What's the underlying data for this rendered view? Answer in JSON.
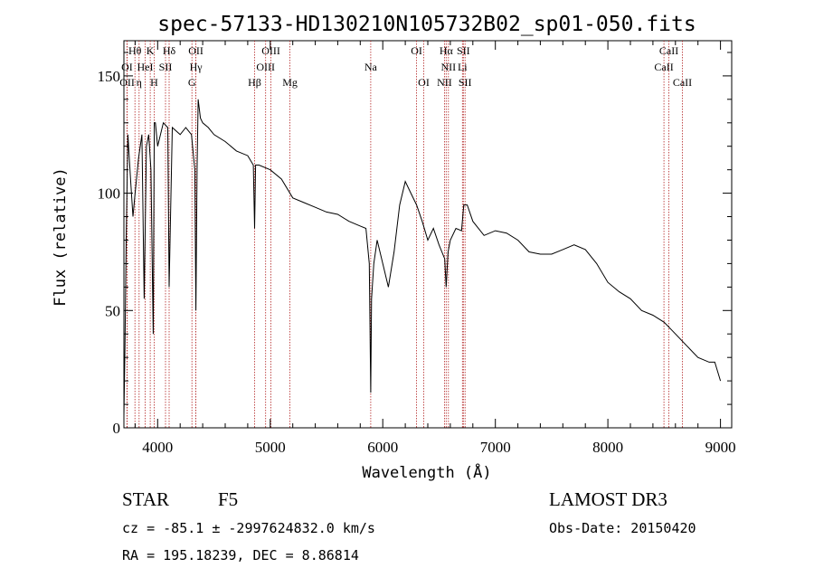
{
  "chart_data": {
    "type": "line",
    "title": "spec-57133-HD130210N105732B02_sp01-050.fits",
    "xlabel": "Wavelength (Å)",
    "ylabel": "Flux (relative)",
    "xlim": [
      3700,
      9100
    ],
    "ylim": [
      0,
      165
    ],
    "xticks": [
      4000,
      5000,
      6000,
      7000,
      8000,
      9000
    ],
    "yticks": [
      0,
      50,
      100,
      150
    ],
    "grid": false,
    "series": [
      {
        "color": "#000000",
        "x": [
          3700,
          3710,
          3720,
          3735,
          3760,
          3780,
          3800,
          3830,
          3860,
          3880,
          3900,
          3920,
          3940,
          3960,
          3970,
          3980,
          4000,
          4050,
          4090,
          4102,
          4130,
          4200,
          4250,
          4300,
          4330,
          4340,
          4350,
          4360,
          4380,
          4400,
          4450,
          4500,
          4600,
          4700,
          4800,
          4850,
          4861,
          4870,
          4900,
          5000,
          5100,
          5200,
          5300,
          5400,
          5500,
          5600,
          5700,
          5800,
          5850,
          5880,
          5893,
          5900,
          5920,
          5950,
          6000,
          6050,
          6100,
          6150,
          6200,
          6250,
          6300,
          6350,
          6400,
          6450,
          6500,
          6550,
          6563,
          6580,
          6600,
          6650,
          6700,
          6720,
          6750,
          6800,
          6900,
          7000,
          7100,
          7200,
          7300,
          7400,
          7500,
          7600,
          7700,
          7800,
          7900,
          8000,
          8100,
          8200,
          8300,
          8400,
          8500,
          8600,
          8700,
          8800,
          8900,
          8950,
          9000
        ],
        "y": [
          5,
          35,
          80,
          125,
          105,
          90,
          100,
          115,
          125,
          55,
          120,
          125,
          110,
          40,
          130,
          130,
          120,
          130,
          128,
          60,
          128,
          125,
          128,
          125,
          110,
          50,
          110,
          140,
          132,
          130,
          128,
          125,
          122,
          118,
          116,
          112,
          85,
          112,
          112,
          110,
          106,
          98,
          96,
          94,
          92,
          91,
          88,
          86,
          85,
          70,
          15,
          55,
          70,
          80,
          70,
          60,
          75,
          95,
          105,
          100,
          95,
          88,
          80,
          85,
          78,
          72,
          60,
          75,
          80,
          85,
          84,
          95,
          95,
          88,
          82,
          84,
          83,
          80,
          75,
          74,
          74,
          76,
          78,
          76,
          70,
          62,
          58,
          55,
          50,
          48,
          45,
          40,
          35,
          30,
          28,
          28,
          20
        ]
      }
    ],
    "lines": [
      {
        "label": "Hθ",
        "x": 3798,
        "row": 1
      },
      {
        "label": "K",
        "x": 3934,
        "row": 1
      },
      {
        "label": "Hδ",
        "x": 4102,
        "row": 1
      },
      {
        "label": "OII",
        "x": 4340,
        "row": 1
      },
      {
        "label": "OIII",
        "x": 5007,
        "row": 1
      },
      {
        "label": "OI",
        "x": 6300,
        "row": 1
      },
      {
        "label": "Hα",
        "x": 6563,
        "row": 1
      },
      {
        "label": "SII",
        "x": 6716,
        "row": 1
      },
      {
        "label": "CaII",
        "x": 8542,
        "row": 1
      },
      {
        "label": "OI",
        "x": 3727,
        "row": 2
      },
      {
        "label": "HeI",
        "x": 3889,
        "row": 2
      },
      {
        "label": "SII",
        "x": 4070,
        "row": 2
      },
      {
        "label": "Hγ",
        "x": 4340,
        "row": 2
      },
      {
        "label": "OIII",
        "x": 4959,
        "row": 2
      },
      {
        "label": "Na",
        "x": 5893,
        "row": 2
      },
      {
        "label": "NII",
        "x": 6583,
        "row": 2
      },
      {
        "label": "Li",
        "x": 6708,
        "row": 2
      },
      {
        "label": "CaII",
        "x": 8498,
        "row": 2
      },
      {
        "label": "OII",
        "x": 3729,
        "row": 3
      },
      {
        "label": "η",
        "x": 3835,
        "row": 3
      },
      {
        "label": "H",
        "x": 3968,
        "row": 3
      },
      {
        "label": "G",
        "x": 4304,
        "row": 3
      },
      {
        "label": "Hβ",
        "x": 4861,
        "row": 3
      },
      {
        "label": "Mg",
        "x": 5175,
        "row": 3
      },
      {
        "label": "OI",
        "x": 6364,
        "row": 3
      },
      {
        "label": "NII",
        "x": 6548,
        "row": 3
      },
      {
        "label": "SII",
        "x": 6731,
        "row": 3
      },
      {
        "label": "CaII",
        "x": 8662,
        "row": 3
      }
    ]
  },
  "info": {
    "object_class": "STAR",
    "subclass": "F5",
    "survey": "LAMOST DR3",
    "redshift": "cz = -85.1 ± -2997624832.0 km/s",
    "obs_date": "Obs-Date: 20150420",
    "coords": "RA = 195.18239, DEC =   8.86814"
  }
}
